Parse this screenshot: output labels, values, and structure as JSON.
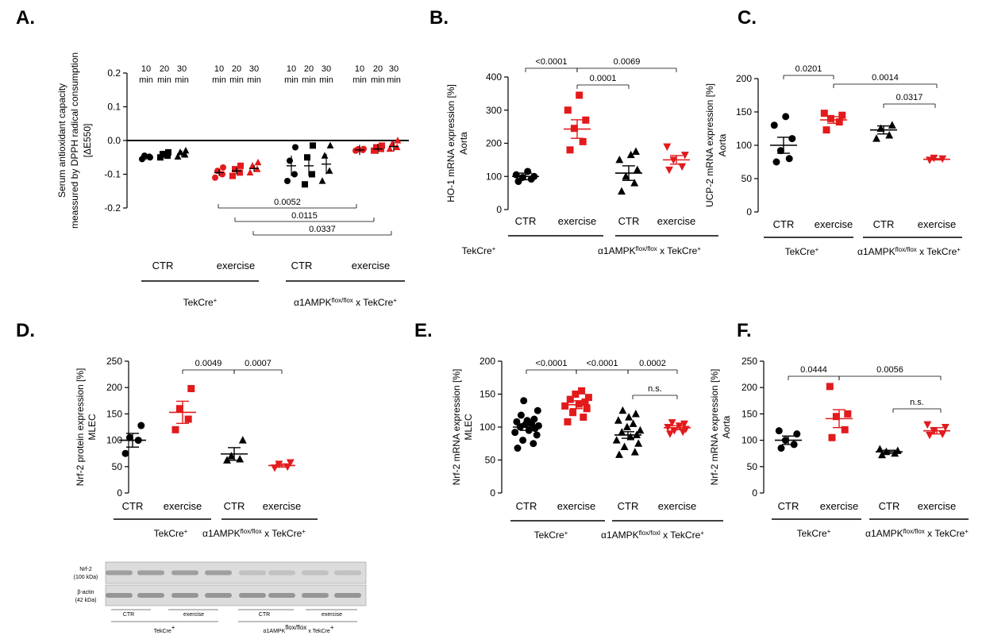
{
  "colors": {
    "ctr": "#000000",
    "exercise": "#e31a1c",
    "blot_bg": "#dcdcdc",
    "band": "#6e6e6e"
  },
  "chart_data": [
    {
      "panel": "A.",
      "type": "scatter",
      "ylabel_lines": [
        "Serum antioxidant capacity",
        "meassured by DPPH radical consumption"
      ],
      "ylabel_unit": "[ΔE550]",
      "ylim": [
        -0.2,
        0.2
      ],
      "yticks": [
        "0.2",
        "0.1",
        "0.0",
        "-0.1",
        "-0.2"
      ],
      "time_labels": [
        "10 min",
        "20 min",
        "30 min"
      ],
      "categories": [
        "CTR",
        "exercise",
        "CTR",
        "exercise"
      ],
      "groups": [
        "TekCre+",
        "α1AMPKflox/flox x TekCre+"
      ],
      "series": [
        {
          "group": 0,
          "color": "black",
          "marker": [
            "circle",
            "square",
            "triangle"
          ],
          "means": [
            -0.048,
            -0.042,
            -0.04
          ],
          "points": [
            [
              -0.055,
              -0.048,
              -0.045,
              -0.05
            ],
            [
              -0.05,
              -0.045,
              -0.04,
              -0.035
            ],
            [
              -0.048,
              -0.042,
              -0.035,
              -0.03
            ]
          ]
        },
        {
          "group": 1,
          "color": "red",
          "marker": [
            "circle",
            "square",
            "triangle"
          ],
          "means": [
            -0.095,
            -0.09,
            -0.083
          ],
          "points": [
            [
              -0.11,
              -0.1,
              -0.09,
              -0.08
            ],
            [
              -0.105,
              -0.095,
              -0.085,
              -0.075
            ],
            [
              -0.095,
              -0.085,
              -0.075,
              -0.065
            ]
          ]
        },
        {
          "group": 2,
          "color": "black",
          "marker": [
            "circle",
            "square",
            "triangle"
          ],
          "means": [
            -0.075,
            -0.075,
            -0.07
          ],
          "points": [
            [
              -0.12,
              -0.1,
              -0.06,
              -0.02
            ],
            [
              -0.13,
              -0.1,
              -0.05,
              -0.015
            ],
            [
              -0.12,
              -0.09,
              -0.045,
              -0.015
            ]
          ]
        },
        {
          "group": 3,
          "color": "red",
          "marker": [
            "circle",
            "square",
            "triangle"
          ],
          "means": [
            -0.028,
            -0.025,
            -0.018
          ],
          "points": [
            [
              -0.03,
              -0.028,
              -0.026,
              -0.025
            ],
            [
              -0.03,
              -0.025,
              -0.02,
              -0.015
            ],
            [
              -0.025,
              -0.02,
              -0.01,
              0.0
            ]
          ]
        }
      ],
      "pvalues": [
        "0.0052",
        "0.0115",
        "0.0337"
      ]
    },
    {
      "panel": "B.",
      "type": "scatter",
      "ylabel_lines": [
        "HO-1 mRNA expression [%]",
        "Aorta"
      ],
      "ylim": [
        0,
        400
      ],
      "yticks": [
        "400",
        "300",
        "200",
        "100",
        "0"
      ],
      "categories": [
        "CTR",
        "exercise",
        "CTR",
        "exercise"
      ],
      "groups": [
        "TekCre+",
        "α1AMPKflox/flox x TekCre+"
      ],
      "series": [
        {
          "color": "black",
          "marker": "circle",
          "mean": 100,
          "sem": 10,
          "points": [
            85,
            92,
            97,
            100,
            105,
            115
          ]
        },
        {
          "color": "red",
          "marker": "square",
          "mean": 243,
          "sem": 28,
          "points": [
            180,
            205,
            245,
            270,
            300,
            345
          ]
        },
        {
          "color": "black",
          "marker": "triangle",
          "mean": 110,
          "sem": 22,
          "points": [
            55,
            80,
            100,
            120,
            150,
            165,
            175
          ]
        },
        {
          "color": "red",
          "marker": "triangle_down",
          "mean": 150,
          "sem": 13,
          "points": [
            120,
            130,
            150,
            165,
            190
          ]
        }
      ],
      "pvalues": [
        "<0.0001",
        "0.0001",
        "0.0069"
      ]
    },
    {
      "panel": "C.",
      "type": "scatter",
      "ylabel_lines": [
        "UCP-2 mRNA expression [%]",
        "Aorta"
      ],
      "ylim": [
        0,
        200
      ],
      "yticks": [
        "200",
        "150",
        "100",
        "50",
        "0"
      ],
      "categories": [
        "CTR",
        "exercise",
        "CTR",
        "exercise"
      ],
      "groups": [
        "TekCre+",
        "α1AMPKflox/flox x TekCre+"
      ],
      "series": [
        {
          "color": "black",
          "marker": "circle",
          "mean": 100,
          "sem": 12,
          "points": [
            75,
            80,
            92,
            110,
            130,
            143
          ]
        },
        {
          "color": "red",
          "marker": "square",
          "mean": 138,
          "sem": 5,
          "points": [
            123,
            135,
            140,
            145,
            148
          ]
        },
        {
          "color": "black",
          "marker": "triangle",
          "mean": 123,
          "sem": 6,
          "points": [
            110,
            115,
            125,
            130
          ]
        },
        {
          "color": "red",
          "marker": "triangle_down",
          "mean": 79,
          "sem": 1,
          "points": [
            78,
            80,
            81
          ]
        }
      ],
      "pvalues": [
        "0.0201",
        "0.0014",
        "0.0317"
      ]
    },
    {
      "panel": "D.",
      "type": "scatter",
      "ylabel_lines": [
        "Nrf-2 protein expression [%]",
        "MLEC"
      ],
      "ylim": [
        0,
        250
      ],
      "yticks": [
        "250",
        "200",
        "150",
        "100",
        "50",
        "0"
      ],
      "categories": [
        "CTR",
        "exercise",
        "CTR",
        "exercise"
      ],
      "groups": [
        "TekCre+",
        "α1AMPKflox/flox x TekCre+"
      ],
      "series": [
        {
          "color": "black",
          "marker": "circle",
          "mean": 100,
          "sem": 13,
          "points": [
            75,
            100,
            105,
            128
          ]
        },
        {
          "color": "red",
          "marker": "square",
          "mean": 153,
          "sem": 21,
          "points": [
            120,
            140,
            160,
            198
          ]
        },
        {
          "color": "black",
          "marker": "triangle",
          "mean": 74,
          "sem": 12,
          "points": [
            62,
            64,
            70,
            100
          ]
        },
        {
          "color": "red",
          "marker": "triangle_down",
          "mean": 52,
          "sem": 3,
          "points": [
            48,
            50,
            55,
            58
          ]
        }
      ],
      "pvalues": [
        "0.0049",
        "0.0007"
      ],
      "blot": {
        "rows": [
          {
            "label": "Nrf-2",
            "size": "(100 kDa)"
          },
          {
            "label": "β-actin",
            "size": "(42 kDa)"
          }
        ],
        "conditions": [
          "CTR",
          "exercise",
          "CTR",
          "exercise"
        ],
        "groups": [
          "TekCre+",
          "α1AMPKflox/flox x TekCre+"
        ]
      }
    },
    {
      "panel": "E.",
      "type": "scatter",
      "ylabel_lines": [
        "Nrf-2 mRNA expression [%]",
        "MLEC"
      ],
      "ylim": [
        0,
        200
      ],
      "yticks": [
        "200",
        "150",
        "100",
        "50",
        "0"
      ],
      "categories": [
        "CTR",
        "exercise",
        "CTR",
        "exercise"
      ],
      "groups": [
        "TekCre+",
        "α1AMPKflox/foxl x TekCre+"
      ],
      "series": [
        {
          "color": "black",
          "marker": "circle",
          "mean": 100,
          "sem": 5,
          "points": [
            68,
            75,
            80,
            88,
            92,
            95,
            98,
            100,
            102,
            104,
            105,
            108,
            110,
            112,
            118,
            125,
            140
          ]
        },
        {
          "color": "red",
          "marker": "square",
          "mean": 134,
          "sem": 6,
          "points": [
            108,
            115,
            122,
            128,
            132,
            135,
            138,
            142,
            145,
            150,
            155
          ]
        },
        {
          "color": "black",
          "marker": "triangle",
          "mean": 88,
          "sem": 5,
          "points": [
            58,
            62,
            70,
            75,
            80,
            85,
            88,
            92,
            95,
            100,
            105,
            110,
            115,
            120,
            125
          ]
        },
        {
          "color": "red",
          "marker": "triangle_down",
          "mean": 99,
          "sem": 3,
          "points": [
            90,
            93,
            95,
            97,
            100,
            102,
            105,
            107
          ]
        }
      ],
      "pvalues": [
        "<0.0001",
        "<0.0001",
        "0.0002",
        "n.s."
      ]
    },
    {
      "panel": "F.",
      "type": "scatter",
      "ylabel_lines": [
        "Nrf-2 mRNA expression [%]",
        "Aorta"
      ],
      "ylim": [
        0,
        250
      ],
      "yticks": [
        "250",
        "200",
        "150",
        "100",
        "50",
        "0"
      ],
      "categories": [
        "CTR",
        "exercise",
        "CTR",
        "exercise"
      ],
      "groups": [
        "TekCre+",
        "α1AMPKflox/flox x TekCre+"
      ],
      "series": [
        {
          "color": "black",
          "marker": "circle",
          "mean": 100,
          "sem": 8,
          "points": [
            85,
            92,
            100,
            112,
            118
          ]
        },
        {
          "color": "red",
          "marker": "square",
          "mean": 141,
          "sem": 17,
          "points": [
            105,
            120,
            145,
            150,
            202
          ]
        },
        {
          "color": "black",
          "marker": "triangle",
          "mean": 78,
          "sem": 3,
          "points": [
            72,
            75,
            78,
            80,
            83
          ]
        },
        {
          "color": "red",
          "marker": "triangle_down",
          "mean": 118,
          "sem": 6,
          "points": [
            110,
            112,
            118,
            125,
            130
          ]
        }
      ],
      "pvalues": [
        "0.0444",
        "0.0056",
        "n.s."
      ]
    }
  ]
}
